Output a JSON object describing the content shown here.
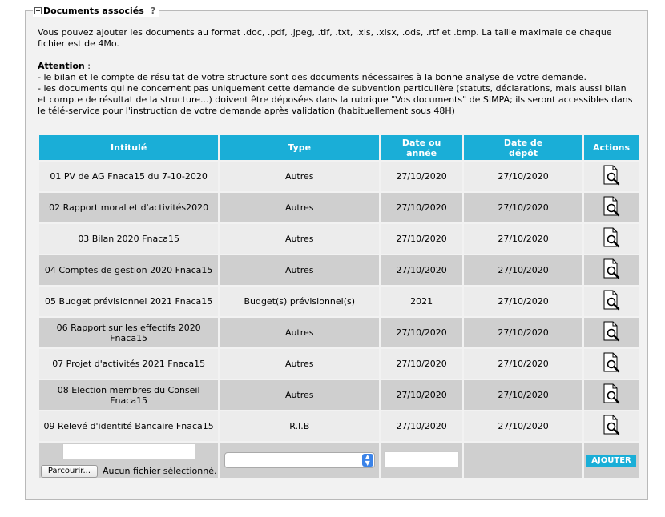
{
  "fieldset": {
    "legend": "Documents associés",
    "help": "?"
  },
  "intro": "Vous pouvez ajouter les documents au format .doc, .pdf, .jpeg, .tif, .txt, .xls, .xlsx, .ods, .rtf et .bmp. La taille maximale de chaque fichier est de 4Mo.",
  "attention": {
    "title": "Attention",
    "colon": " :",
    "line1": "- le bilan et le compte de résultat de votre structure sont des documents nécessaires à la bonne analyse de votre demande.",
    "line2": "- les documents qui ne concernent pas uniquement cette demande de subvention particulière (statuts, déclarations, mais aussi bilan et compte de résultat de la structure...) doivent être déposées dans la rubrique \"Vos documents\" de SIMPA; ils seront accessibles dans le télé-service pour l'instruction de votre demande après validation (habituellement sous 48H)"
  },
  "table": {
    "headers": {
      "intitule": "Intitulé",
      "type": "Type",
      "date_annee_1": "Date ou",
      "date_annee_2": "année",
      "date_depot_1": "Date de",
      "date_depot_2": "dépôt",
      "actions": "Actions"
    },
    "rows": [
      {
        "intitule": "01 PV de AG Fnaca15 du 7-10-2020",
        "type": "Autres",
        "date": "27/10/2020",
        "depot": "27/10/2020"
      },
      {
        "intitule": "02 Rapport moral et d'activités2020",
        "type": "Autres",
        "date": "27/10/2020",
        "depot": "27/10/2020"
      },
      {
        "intitule": "03 Bilan 2020 Fnaca15",
        "type": "Autres",
        "date": "27/10/2020",
        "depot": "27/10/2020"
      },
      {
        "intitule": "04 Comptes de gestion 2020 Fnaca15",
        "type": "Autres",
        "date": "27/10/2020",
        "depot": "27/10/2020"
      },
      {
        "intitule": "05 Budget prévisionnel 2021 Fnaca15",
        "type": "Budget(s) prévisionnel(s)",
        "date": "2021",
        "depot": "27/10/2020"
      },
      {
        "intitule": "06 Rapport sur les effectifs 2020 Fnaca15",
        "type": "Autres",
        "date": "27/10/2020",
        "depot": "27/10/2020"
      },
      {
        "intitule": "07 Projet d'activités 2021 Fnaca15",
        "type": "Autres",
        "date": "27/10/2020",
        "depot": "27/10/2020"
      },
      {
        "intitule": "08 Election membres du Conseil Fnaca15",
        "type": "Autres",
        "date": "27/10/2020",
        "depot": "27/10/2020"
      },
      {
        "intitule": "09 Relevé d'identité Bancaire Fnaca15",
        "type": "R.I.B",
        "date": "27/10/2020",
        "depot": "27/10/2020"
      }
    ],
    "action_icon": "document-view-icon"
  },
  "form": {
    "browse_label": "Parcourir...",
    "no_file": "Aucun fichier sélectionné.",
    "add_label": "AJOUTER"
  }
}
